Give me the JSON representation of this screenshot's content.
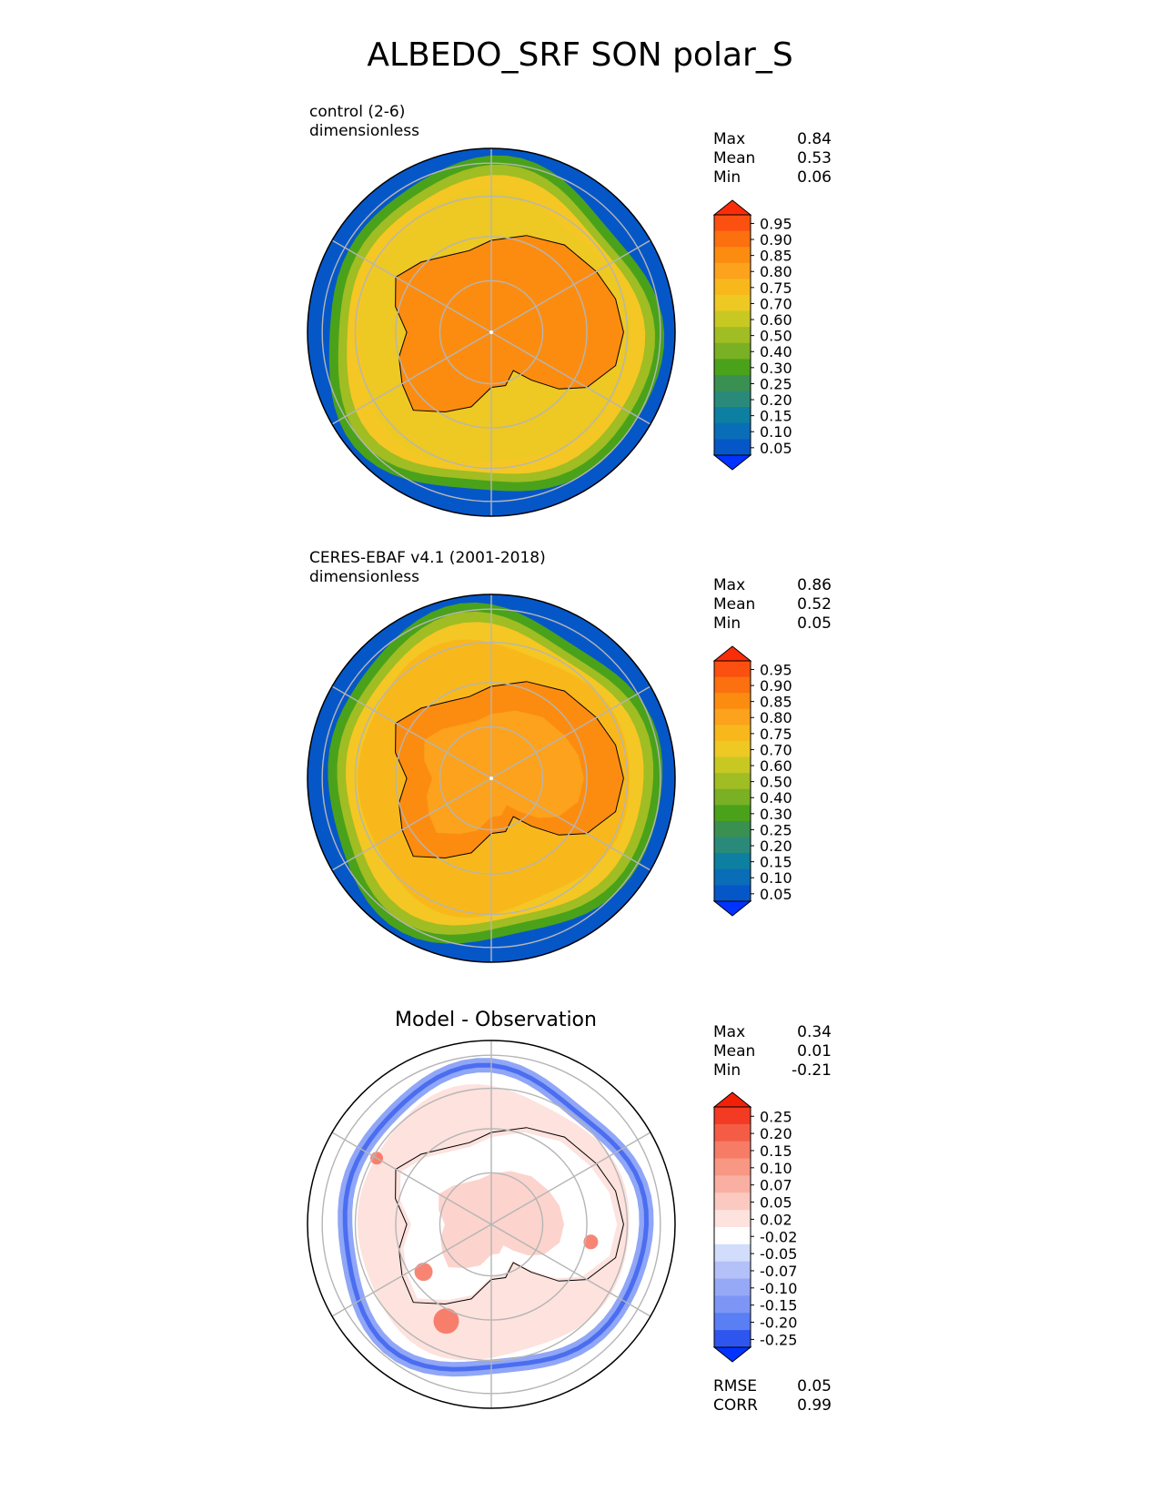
{
  "title": "ALBEDO_SRF SON polar_S",
  "colors": {
    "abs_scale": [
      "#0033ff",
      "#0557c8",
      "#0a6db8",
      "#0d7fa0",
      "#2a8a7a",
      "#3a9050",
      "#4aa21a",
      "#7ab023",
      "#a0bd23",
      "#c8c823",
      "#eec823",
      "#f8b81c",
      "#fca21c",
      "#fc8c10",
      "#fc7010",
      "#fb5010",
      "#fb2d08"
    ],
    "diff_scale": [
      "#0033ff",
      "#2e56ee",
      "#5a7ef4",
      "#7d96f5",
      "#95a9f6",
      "#b4c1f8",
      "#d2dcfb",
      "#ffffff",
      "#fde2de",
      "#fbc9c0",
      "#f9b0a3",
      "#f89784",
      "#f77c66",
      "#f55c45",
      "#f33a22",
      "#f32008"
    ],
    "ocean": "#0557c8",
    "land": "#fc8c10",
    "ice_rim": "#f4c724",
    "grid": "#b5b5b5"
  },
  "panels": [
    {
      "subtitle": [
        "control (2-6)",
        "dimensionless"
      ],
      "stats": [
        {
          "label": "Max",
          "value": "0.84"
        },
        {
          "label": "Mean",
          "value": "0.53"
        },
        {
          "label": "Min",
          "value": "0.06"
        }
      ],
      "colorbar_labels": [
        "0.95",
        "0.90",
        "0.85",
        "0.80",
        "0.75",
        "0.70",
        "0.60",
        "0.50",
        "0.40",
        "0.30",
        "0.25",
        "0.20",
        "0.15",
        "0.10",
        "0.05"
      ]
    },
    {
      "subtitle": [
        "CERES-EBAF v4.1 (2001-2018)",
        "dimensionless"
      ],
      "stats": [
        {
          "label": "Max",
          "value": "0.86"
        },
        {
          "label": "Mean",
          "value": "0.52"
        },
        {
          "label": "Min",
          "value": "0.05"
        }
      ],
      "colorbar_labels": [
        "0.95",
        "0.90",
        "0.85",
        "0.80",
        "0.75",
        "0.70",
        "0.60",
        "0.50",
        "0.40",
        "0.30",
        "0.25",
        "0.20",
        "0.15",
        "0.10",
        "0.05"
      ]
    },
    {
      "heading": "Model - Observation",
      "stats": [
        {
          "label": "Max",
          "value": "0.34"
        },
        {
          "label": "Mean",
          "value": "0.01"
        },
        {
          "label": "Min",
          "value": "-0.21"
        }
      ],
      "colorbar_labels": [
        "0.25",
        "0.20",
        "0.15",
        "0.10",
        "0.07",
        "0.05",
        "0.02",
        "-0.02",
        "-0.05",
        "-0.07",
        "-0.10",
        "-0.15",
        "-0.20",
        "-0.25"
      ],
      "metrics": [
        {
          "label": "RMSE",
          "value": "0.05"
        },
        {
          "label": "CORR",
          "value": "0.99"
        }
      ]
    }
  ],
  "chart_data": [
    {
      "type": "heatmap",
      "projection": "south-polar-stereographic",
      "title": "control (2-6)",
      "units": "dimensionless",
      "stats": {
        "max": 0.84,
        "mean": 0.53,
        "min": 0.06
      },
      "colorbar_levels": [
        0.05,
        0.1,
        0.15,
        0.2,
        0.25,
        0.3,
        0.4,
        0.5,
        0.6,
        0.7,
        0.75,
        0.8,
        0.85,
        0.9,
        0.95
      ],
      "colorbar_extend": "both"
    },
    {
      "type": "heatmap",
      "projection": "south-polar-stereographic",
      "title": "CERES-EBAF v4.1 (2001-2018)",
      "units": "dimensionless",
      "stats": {
        "max": 0.86,
        "mean": 0.52,
        "min": 0.05
      },
      "colorbar_levels": [
        0.05,
        0.1,
        0.15,
        0.2,
        0.25,
        0.3,
        0.4,
        0.5,
        0.6,
        0.7,
        0.75,
        0.8,
        0.85,
        0.9,
        0.95
      ],
      "colorbar_extend": "both"
    },
    {
      "type": "heatmap",
      "projection": "south-polar-stereographic",
      "title": "Model - Observation",
      "stats": {
        "max": 0.34,
        "mean": 0.01,
        "min": -0.21,
        "rmse": 0.05,
        "corr": 0.99
      },
      "colorbar_levels": [
        -0.25,
        -0.2,
        -0.15,
        -0.1,
        -0.07,
        -0.05,
        -0.02,
        0.02,
        0.05,
        0.07,
        0.1,
        0.15,
        0.2,
        0.25
      ],
      "colorbar_extend": "both"
    }
  ]
}
